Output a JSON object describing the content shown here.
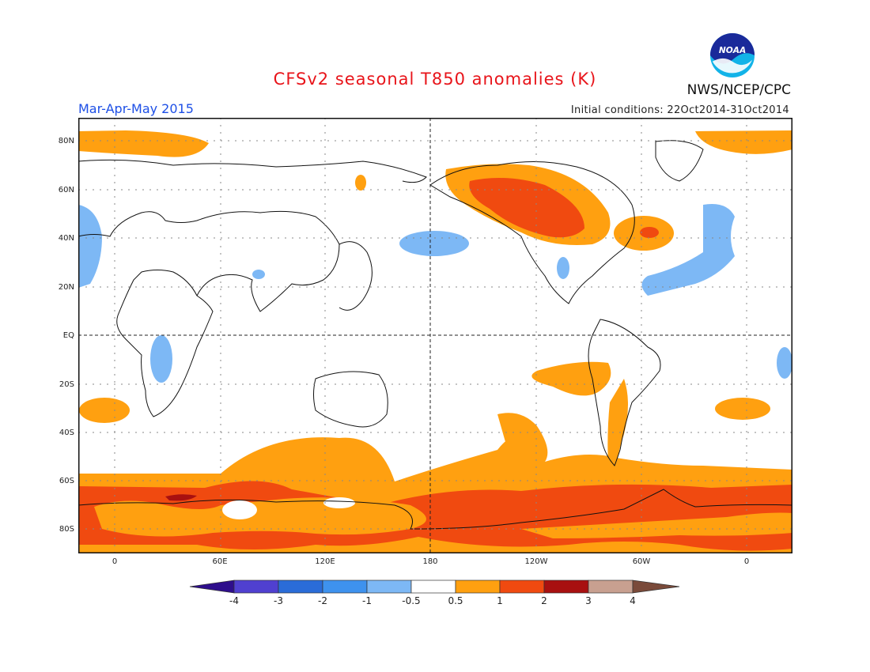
{
  "header": {
    "title": "CFSv2 seasonal T850 anomalies (K)",
    "period": "Mar-Apr-May 2015",
    "initial_conditions": "Initial conditions: 22Oct2014-31Oct2014",
    "agency": "NWS/NCEP/CPC",
    "logo_text": "NOAA"
  },
  "map": {
    "lat_ticks": [
      "80N",
      "60N",
      "40N",
      "20N",
      "EQ",
      "20S",
      "40S",
      "60S",
      "80S"
    ],
    "lon_ticks": [
      "0",
      "60E",
      "120E",
      "180",
      "120W",
      "60W",
      "0"
    ]
  },
  "colorbar": {
    "labels": [
      "-4",
      "-3",
      "-2",
      "-1",
      "-0.5",
      "0.5",
      "1",
      "2",
      "3",
      "4"
    ],
    "colors": [
      "#2e0e8c",
      "#5040d0",
      "#2a6cd8",
      "#3e92ee",
      "#7db8f5",
      "#ffffff",
      "#ffa010",
      "#f04a10",
      "#a81010",
      "#c8a090",
      "#7a4a3a"
    ]
  }
}
